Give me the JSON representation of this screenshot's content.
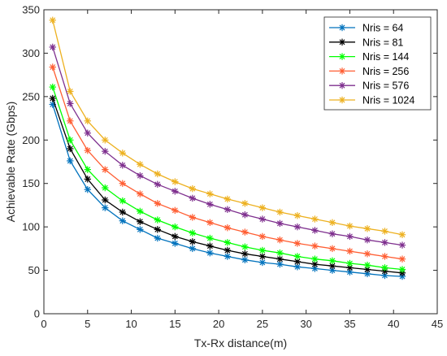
{
  "chart_data": {
    "type": "line",
    "xlabel": "Tx-Rx distance(m)",
    "ylabel": "Achievable Rate (Gbps)",
    "xlim": [
      0,
      45
    ],
    "ylim": [
      0,
      350
    ],
    "xticks": [
      0,
      5,
      10,
      15,
      20,
      25,
      30,
      35,
      40,
      45
    ],
    "yticks": [
      0,
      50,
      100,
      150,
      200,
      250,
      300,
      350
    ],
    "grid": false,
    "legend_position": "top-right",
    "marker": "asterisk",
    "x": [
      1,
      3,
      5,
      7,
      9,
      11,
      13,
      15,
      17,
      19,
      21,
      23,
      25,
      27,
      29,
      31,
      33,
      35,
      37,
      39,
      41
    ],
    "series": [
      {
        "name": "Nris = 64",
        "color": "#0072BD",
        "values": [
          241,
          176,
          143,
          122,
          107,
          97,
          87,
          81,
          75,
          70,
          66,
          62,
          59,
          57,
          54,
          52,
          50,
          48,
          46,
          44,
          43
        ]
      },
      {
        "name": "Nris = 81",
        "color": "#000000",
        "values": [
          248,
          190,
          155,
          131,
          117,
          106,
          97,
          89,
          83,
          78,
          73,
          69,
          66,
          63,
          60,
          57,
          55,
          53,
          51,
          49,
          47
        ]
      },
      {
        "name": "Nris = 144",
        "color": "#00FF00",
        "values": [
          261,
          200,
          166,
          145,
          130,
          118,
          108,
          100,
          93,
          87,
          82,
          77,
          73,
          70,
          66,
          63,
          61,
          58,
          56,
          53,
          51
        ]
      },
      {
        "name": "Nris = 256",
        "color": "#FF5E33",
        "values": [
          284,
          222,
          188,
          166,
          150,
          138,
          127,
          119,
          111,
          105,
          99,
          94,
          89,
          85,
          81,
          78,
          75,
          72,
          69,
          66,
          63
        ]
      },
      {
        "name": "Nris = 576",
        "color": "#7E2F8E",
        "values": [
          307,
          242,
          208,
          187,
          171,
          159,
          149,
          141,
          133,
          126,
          120,
          114,
          109,
          104,
          100,
          96,
          92,
          89,
          85,
          82,
          79
        ]
      },
      {
        "name": "Nris = 1024",
        "color": "#EDB120",
        "values": [
          338,
          256,
          222,
          200,
          185,
          172,
          161,
          152,
          144,
          138,
          132,
          127,
          122,
          117,
          113,
          109,
          105,
          101,
          98,
          95,
          91
        ]
      }
    ]
  }
}
